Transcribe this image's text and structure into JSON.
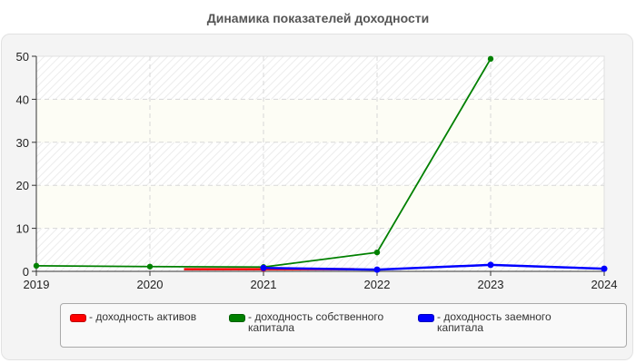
{
  "chart_data": {
    "type": "line",
    "title": "Динамика показателей доходности",
    "xlabel": "",
    "ylabel": "",
    "categories": [
      "2019",
      "2020",
      "2021",
      "2022",
      "2023",
      "2024"
    ],
    "ylim": [
      0,
      50
    ],
    "yticks": [
      "0",
      "10",
      "20",
      "30",
      "40",
      "50"
    ],
    "grid": true,
    "legend_position": "bottom",
    "series": [
      {
        "name": "доходность активов",
        "color": "#ff0000",
        "values": [
          null,
          null,
          0.6,
          null,
          null,
          null
        ]
      },
      {
        "name": "доходность собственного капитала",
        "color": "#008000",
        "values": [
          1.3,
          1.1,
          1.0,
          4.4,
          49.4,
          null
        ]
      },
      {
        "name": "доходность заемного капитала",
        "color": "#0000ff",
        "values": [
          null,
          null,
          0.8,
          0.4,
          1.5,
          0.6
        ]
      }
    ]
  },
  "legend": {
    "items": [
      {
        "label": "- доходность активов",
        "color": "#ff0000"
      },
      {
        "label": "- доходность собственного\nкапитала",
        "color": "#008000"
      },
      {
        "label": "- доходность заемного\nкапитала",
        "color": "#0000ff"
      }
    ]
  }
}
